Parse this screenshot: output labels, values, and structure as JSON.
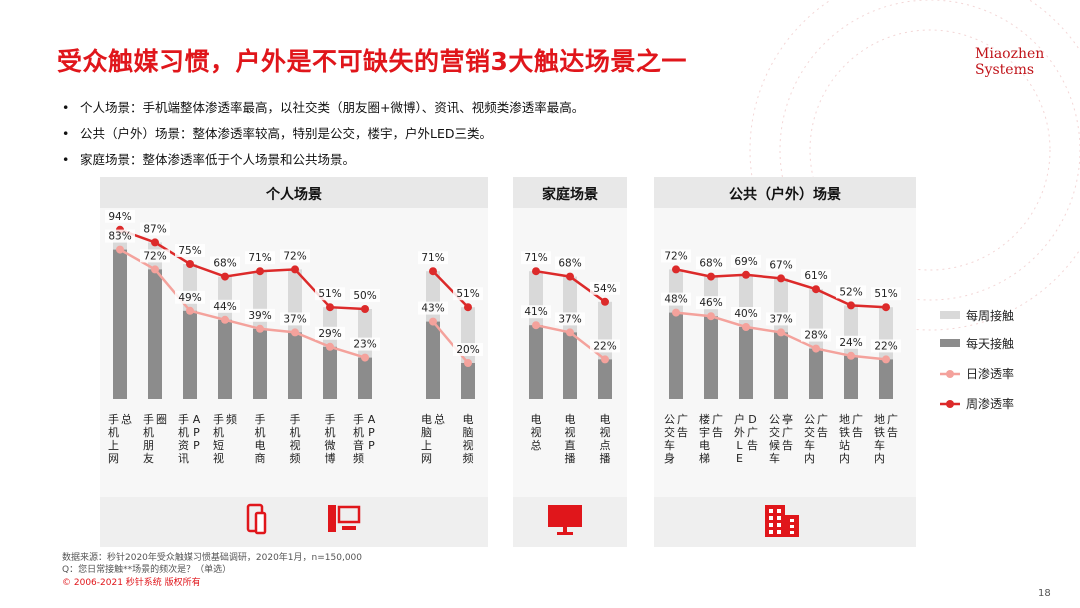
{
  "title": "受众触媒习惯，户外是不可缺失的营销3大触达场景之一",
  "logo": {
    "line1": "Miaozhen",
    "line2": "Systems"
  },
  "bullets": [
    "个人场景：手机端整体渗透率最高，以社交类（朋友圈+微博）、资讯、视频类渗透率最高。",
    "公共（户外）场景：整体渗透率较高，特别是公交，楼宇，户外LED三类。",
    "家庭场景：整体渗透率低于个人场景和公共场景。"
  ],
  "footer": {
    "source": "数据来源：秒针2020年受众触媒习惯基础调研，2020年1月，n=150,000",
    "question": "Q：您日常接触**场景的频次是？（单选）",
    "copyright": "© 2006-2021 秒针系统 版权所有"
  },
  "page_number": "18",
  "colors": {
    "accent": "#e0161b",
    "weekly_bar": "#d9d9d9",
    "daily_bar": "#8c8c8c",
    "daily_line": "#f4a29c",
    "weekly_line": "#dc2a2a"
  },
  "chart_data": {
    "type": "bar",
    "legend_position": "right",
    "legend": [
      "每周接触",
      "每天接触",
      "日渗透率",
      "周渗透率"
    ],
    "groups": [
      {
        "name": "个人场景",
        "icons": [
          "phone-tablet-icon",
          "desktop-computer-icon"
        ],
        "segments": [
          {
            "categories": [
              "手机上网总",
              "手机朋友圈",
              "手机资讯APP",
              "手机短视频",
              "手机电商",
              "手机视频",
              "手机微博",
              "手机音频APP"
            ],
            "weekly": [
              94,
              87,
              75,
              68,
              71,
              72,
              51,
              50
            ],
            "daily": [
              83,
              72,
              49,
              44,
              39,
              37,
              29,
              23
            ],
            "weekly_labels": [
              "94%",
              "87%",
              "75%",
              "68%",
              "71%",
              "72%",
              "51%",
              "50%"
            ],
            "daily_labels": [
              "83%",
              "72%",
              "49%",
              "44%",
              "39%",
              "37%",
              "29%",
              "23%"
            ]
          },
          {
            "categories": [
              "电脑上网总",
              "电脑视频"
            ],
            "weekly": [
              71,
              51
            ],
            "daily": [
              43,
              20
            ],
            "weekly_labels": [
              "71%",
              "51%"
            ],
            "daily_labels": [
              "43%",
              "20%"
            ]
          }
        ]
      },
      {
        "name": "家庭场景",
        "icons": [
          "tv-icon"
        ],
        "segments": [
          {
            "categories": [
              "电视总",
              "电视直播",
              "电视点播"
            ],
            "weekly": [
              71,
              68,
              54
            ],
            "daily": [
              41,
              37,
              22
            ],
            "weekly_labels": [
              "71%",
              "68%",
              "54%"
            ],
            "daily_labels": [
              "41%",
              "37%",
              "22%"
            ]
          }
        ]
      },
      {
        "name": "公共（户外）场景",
        "icons": [
          "building-icon"
        ],
        "segments": [
          {
            "categories": [
              "公交车身广告",
              "楼宇电梯广告",
              "户外LED广告",
              "公交候车亭广告",
              "公交车内广告",
              "地铁站内广告",
              "地铁车内广告"
            ],
            "weekly": [
              72,
              68,
              69,
              67,
              61,
              52,
              51
            ],
            "daily": [
              48,
              46,
              40,
              37,
              28,
              24,
              22
            ],
            "weekly_labels": [
              "72%",
              "68%",
              "69%",
              "67%",
              "61%",
              "52%",
              "51%"
            ],
            "daily_labels": [
              "48%",
              "46%",
              "40%",
              "37%",
              "28%",
              "24%",
              "22%"
            ]
          }
        ]
      }
    ]
  }
}
